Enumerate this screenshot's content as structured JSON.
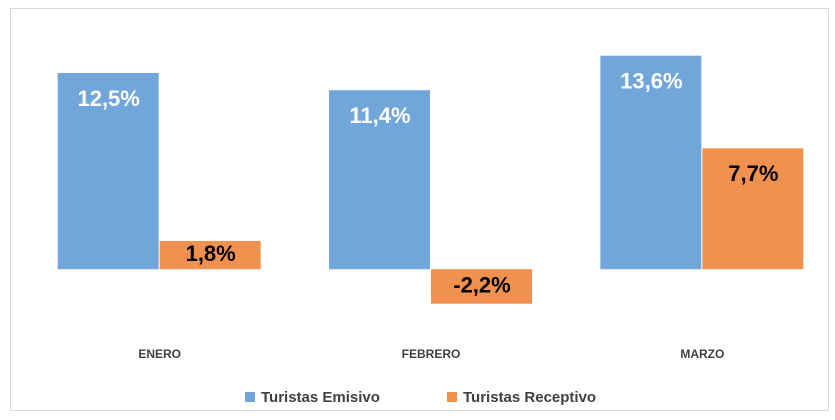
{
  "chart_data": {
    "type": "bar",
    "categories": [
      "ENERO",
      "FEBRERO",
      "MARZO"
    ],
    "series": [
      {
        "name": "Turistas Emisivo",
        "color": "#70a6da",
        "label_color": "#ffffff",
        "values": [
          12.5,
          11.4,
          13.6
        ],
        "value_labels": [
          "12,5%",
          "11,4%",
          "13,6%"
        ]
      },
      {
        "name": "Turistas Receptivo",
        "color": "#f0914f",
        "label_color": "#000000",
        "values": [
          1.8,
          -2.2,
          7.7
        ],
        "value_labels": [
          "1,8%",
          "-2,2%",
          "7,7%"
        ]
      }
    ],
    "ylim": [
      -4,
      16
    ],
    "grid": false,
    "legend": "bottom"
  }
}
